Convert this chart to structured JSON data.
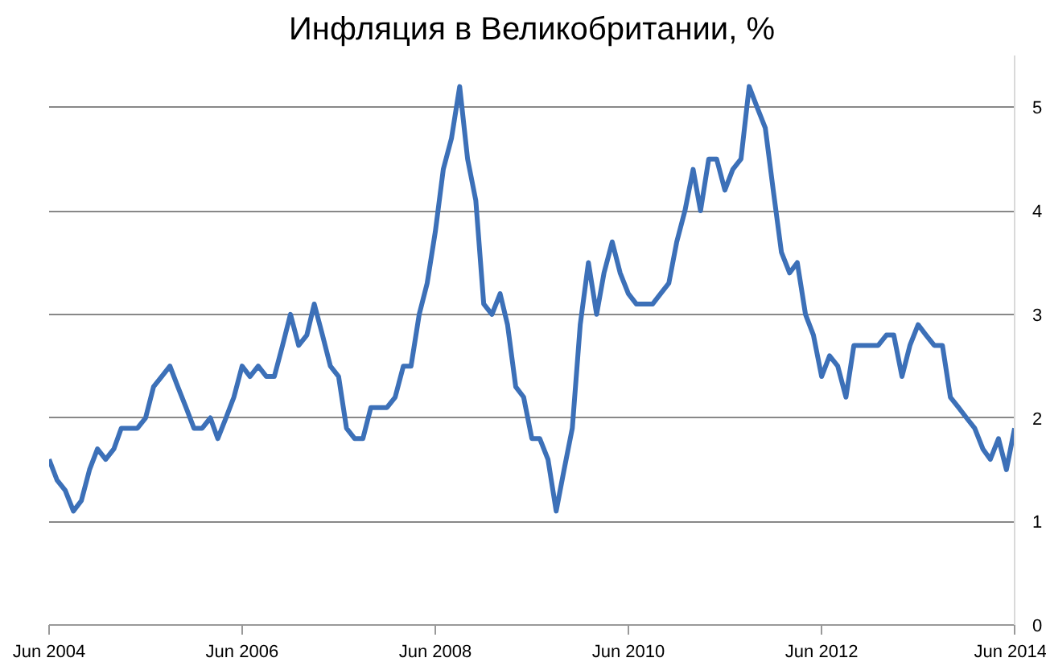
{
  "chart_data": {
    "type": "line",
    "title": "Инфляция в Великобритании, %",
    "x": [
      "2004-06",
      "2004-07",
      "2004-08",
      "2004-09",
      "2004-10",
      "2004-11",
      "2004-12",
      "2005-01",
      "2005-02",
      "2005-03",
      "2005-04",
      "2005-05",
      "2005-06",
      "2005-07",
      "2005-08",
      "2005-09",
      "2005-10",
      "2005-11",
      "2005-12",
      "2006-01",
      "2006-02",
      "2006-03",
      "2006-04",
      "2006-05",
      "2006-06",
      "2006-07",
      "2006-08",
      "2006-09",
      "2006-10",
      "2006-11",
      "2006-12",
      "2007-01",
      "2007-02",
      "2007-03",
      "2007-04",
      "2007-05",
      "2007-06",
      "2007-07",
      "2007-08",
      "2007-09",
      "2007-10",
      "2007-11",
      "2007-12",
      "2008-01",
      "2008-02",
      "2008-03",
      "2008-04",
      "2008-05",
      "2008-06",
      "2008-07",
      "2008-08",
      "2008-09",
      "2008-10",
      "2008-11",
      "2008-12",
      "2009-01",
      "2009-02",
      "2009-03",
      "2009-04",
      "2009-05",
      "2009-06",
      "2009-07",
      "2009-08",
      "2009-09",
      "2009-10",
      "2009-11",
      "2009-12",
      "2010-01",
      "2010-02",
      "2010-03",
      "2010-04",
      "2010-05",
      "2010-06",
      "2010-07",
      "2010-08",
      "2010-09",
      "2010-10",
      "2010-11",
      "2010-12",
      "2011-01",
      "2011-02",
      "2011-03",
      "2011-04",
      "2011-05",
      "2011-06",
      "2011-07",
      "2011-08",
      "2011-09",
      "2011-10",
      "2011-11",
      "2011-12",
      "2012-01",
      "2012-02",
      "2012-03",
      "2012-04",
      "2012-05",
      "2012-06",
      "2012-07",
      "2012-08",
      "2012-09",
      "2012-10",
      "2012-11",
      "2012-12",
      "2013-01",
      "2013-02",
      "2013-03",
      "2013-04",
      "2013-05",
      "2013-06",
      "2013-07",
      "2013-08",
      "2013-09",
      "2013-10",
      "2013-11",
      "2013-12",
      "2014-01",
      "2014-02",
      "2014-03",
      "2014-04",
      "2014-05",
      "2014-06"
    ],
    "series": [
      {
        "color": "#3c70b8",
        "values": [
          1.6,
          1.4,
          1.3,
          1.1,
          1.2,
          1.5,
          1.7,
          1.6,
          1.7,
          1.9,
          1.9,
          1.9,
          2.0,
          2.3,
          2.4,
          2.5,
          2.3,
          2.1,
          1.9,
          1.9,
          2.0,
          1.8,
          2.0,
          2.2,
          2.5,
          2.4,
          2.5,
          2.4,
          2.4,
          2.7,
          3.0,
          2.7,
          2.8,
          3.1,
          2.8,
          2.5,
          2.4,
          1.9,
          1.8,
          1.8,
          2.1,
          2.1,
          2.1,
          2.2,
          2.5,
          2.5,
          3.0,
          3.3,
          3.8,
          4.4,
          4.7,
          5.2,
          4.5,
          4.1,
          3.1,
          3.0,
          3.2,
          2.9,
          2.3,
          2.2,
          1.8,
          1.8,
          1.6,
          1.1,
          1.5,
          1.9,
          2.9,
          3.5,
          3.0,
          3.4,
          3.7,
          3.4,
          3.2,
          3.1,
          3.1,
          3.1,
          3.2,
          3.3,
          3.7,
          4.0,
          4.4,
          4.0,
          4.5,
          4.5,
          4.2,
          4.4,
          4.5,
          5.2,
          5.0,
          4.8,
          4.2,
          3.6,
          3.4,
          3.5,
          3.0,
          2.8,
          2.4,
          2.6,
          2.5,
          2.2,
          2.7,
          2.7,
          2.7,
          2.7,
          2.8,
          2.8,
          2.4,
          2.7,
          2.9,
          2.8,
          2.7,
          2.7,
          2.2,
          2.1,
          2.0,
          1.9,
          1.7,
          1.6,
          1.8,
          1.5,
          1.9
        ]
      }
    ],
    "xlim": [
      "2004-06",
      "2014-06"
    ],
    "xticks": [
      {
        "value": "2004-06",
        "label": "Jun 2004"
      },
      {
        "value": "2006-06",
        "label": "Jun 2006"
      },
      {
        "value": "2008-06",
        "label": "Jun 2008"
      },
      {
        "value": "2010-06",
        "label": "Jun 2010"
      },
      {
        "value": "2012-06",
        "label": "Jun 2012"
      },
      {
        "value": "2014-06",
        "label": "Jun 2014"
      }
    ],
    "ylim": [
      0,
      5.5
    ],
    "yticks": [
      0,
      1,
      2,
      3,
      4,
      5
    ],
    "grid": "y",
    "line_style": "solid",
    "marker": "none"
  }
}
